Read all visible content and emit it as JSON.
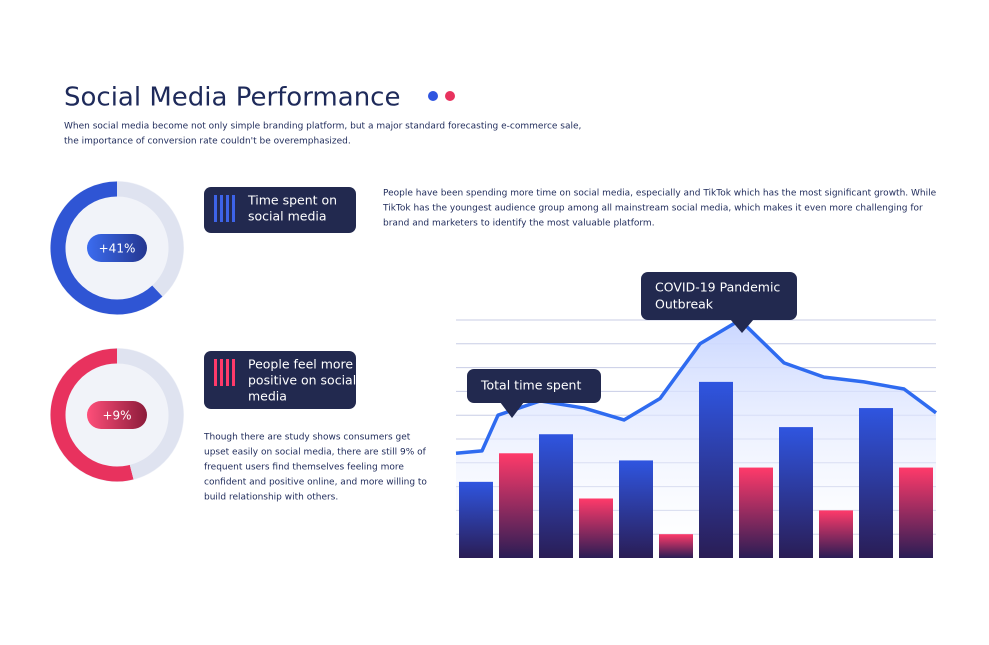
{
  "header": {
    "title": "Social Media Performance",
    "subtitle": [
      "When social media become not only simple branding platform, but a major standard forecasting e-commerce sale,",
      "the importance of conversion rate couldn't be overemphasized."
    ]
  },
  "panels": [
    {
      "title": [
        "Time spent on",
        "social media"
      ],
      "badge": "+41%",
      "text": [
        "People have been spending more time on social media, especially and TikTok which has the most significant growth. While",
        "TikTok has the youngest audience group among all mainstream social media, which makes it even more challenging for",
        "brand and marketers to identify the most valuable platform."
      ]
    },
    {
      "title": [
        "People feel more",
        "positive on social",
        "media"
      ],
      "badge": "+9%",
      "text": [
        "Though there are study shows consumers get",
        "upset easily on social media, there are still 9% of",
        "frequent users find themselves feeling more",
        "confident and positive online, and more willing to",
        "build relationship with others."
      ]
    }
  ],
  "chart_data": [
    {
      "type": "donut",
      "values": [
        62,
        38
      ],
      "colors": [
        "#2f55d4",
        "#dfe3f0"
      ]
    },
    {
      "type": "donut",
      "values": [
        54,
        46
      ],
      "colors": [
        "#e8325e",
        "#dfe3f0"
      ]
    },
    {
      "type": "bar",
      "categories": [
        null,
        null,
        null,
        null,
        null,
        null,
        null,
        null,
        null,
        null,
        null,
        null
      ],
      "values": [
        32,
        44,
        52,
        25,
        41,
        10,
        74,
        38,
        55,
        20,
        63,
        38
      ],
      "colors": [
        "#2f55e0",
        "#ff3a6a",
        "#2f55e0",
        "#ff3a6a",
        "#2f55e0",
        "#ff3a6a",
        "#2f55e0",
        "#ff3a6a",
        "#2f55e0",
        "#ff3a6a",
        "#2f55e0",
        "#ff3a6a"
      ],
      "line": {
        "color": "#2f6bf0",
        "x": [
          0,
          0.65,
          1.05,
          2.1,
          3.2,
          4.2,
          5.1,
          6.1,
          7.1,
          8.2,
          9.2,
          10.2,
          11.2,
          12
        ],
        "values": [
          44,
          45,
          60,
          66,
          63,
          58,
          67,
          90,
          100,
          82,
          76,
          74,
          71,
          61
        ]
      },
      "xlim": [
        0,
        12
      ],
      "ylim": [
        0,
        100
      ],
      "yticks": [
        10,
        20,
        30,
        40,
        50,
        60,
        70,
        80,
        90,
        100
      ],
      "grid": true,
      "annotations": [
        [
          "Total time spent"
        ],
        [
          "COVID-19 Pandemic",
          "Outbreak"
        ]
      ]
    }
  ]
}
